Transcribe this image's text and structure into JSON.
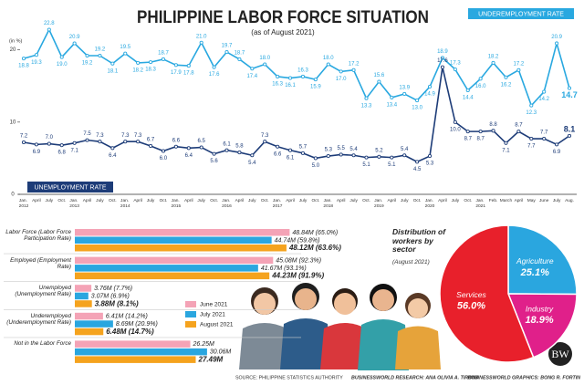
{
  "chart_data": [
    {
      "type": "line",
      "title": "PHILIPPINE LABOR FORCE SITUATION",
      "subtitle": "(as of August 2021)",
      "y_label": "(in %)",
      "categories": [
        "Jan. 2012",
        "April",
        "July",
        "Oct.",
        "Jan. 2013",
        "April",
        "July",
        "Oct.",
        "Jan. 2014",
        "April",
        "July",
        "Oct.",
        "Jan. 2015",
        "April",
        "July",
        "Oct.",
        "Jan. 2016",
        "April",
        "July",
        "Oct.",
        "Jan. 2017",
        "April",
        "July",
        "Oct.",
        "Jan. 2018",
        "April",
        "July",
        "Oct.",
        "Jan. 2019",
        "April",
        "July",
        "Oct.",
        "Jan. 2020",
        "April",
        "July",
        "Oct.",
        "Jan. 2021",
        "Feb.",
        "March",
        "April",
        "May",
        "June",
        "July",
        "Aug."
      ],
      "ylim": [
        0,
        24
      ],
      "yticks": [
        0,
        10,
        20
      ],
      "series": [
        {
          "name": "UNDEREMPLOYMENT RATE",
          "color": "#29a8e0",
          "values": [
            18.8,
            19.3,
            22.8,
            19.0,
            20.9,
            19.2,
            19.2,
            18.1,
            19.5,
            18.2,
            18.3,
            18.7,
            17.9,
            17.8,
            21.0,
            17.6,
            19.7,
            18.7,
            17.4,
            18.0,
            16.3,
            16.1,
            16.3,
            15.9,
            18.0,
            17.0,
            17.2,
            13.3,
            15.6,
            13.4,
            13.9,
            13.0,
            14.9,
            18.9,
            17.3,
            14.4,
            16.0,
            18.2,
            16.2,
            17.2,
            12.3,
            14.2,
            20.9,
            14.7
          ],
          "value_labels": [
            "18.8",
            "19.3",
            "22.8",
            "19.0",
            "20.9",
            "19.2",
            "19.2",
            "18.1",
            "19.5",
            "18.2",
            "18.3",
            "18.7",
            "17.9",
            "17.8",
            "21.0",
            "17.6",
            "19.7",
            "18.7",
            "17.4",
            "18.0",
            "16.3",
            "16.1",
            "16.3",
            "15.9",
            "18.0",
            "17.0",
            "17.2",
            "13.3",
            "15.6",
            "13.4",
            "13.9",
            "13.0",
            "14.9",
            "18.9",
            "17.3",
            "14.4",
            "16.0",
            "18.2",
            "16.2",
            "17.2",
            "12.3",
            "14.2",
            "20.9",
            "14.7"
          ]
        },
        {
          "name": "UNEMPLOYMENT RATE",
          "color": "#1d3c78",
          "values": [
            7.2,
            6.9,
            7.0,
            6.8,
            7.1,
            7.5,
            7.3,
            6.4,
            7.3,
            7.3,
            6.7,
            6.0,
            6.6,
            6.4,
            6.5,
            5.6,
            6.1,
            5.8,
            5.4,
            7.3,
            6.6,
            6.1,
            5.7,
            5.0,
            5.3,
            5.5,
            5.4,
            5.1,
            5.2,
            5.1,
            5.4,
            4.5,
            5.3,
            17.6,
            10.0,
            8.7,
            8.7,
            8.8,
            7.1,
            8.7,
            7.7,
            7.7,
            6.9,
            8.1
          ],
          "value_labels": [
            "7.2",
            "6.9",
            "7.0",
            "6.8",
            "7.1",
            "7.5",
            "7.3",
            "6.4",
            "7.3",
            "7.3",
            "6.7",
            "6.0",
            "6.6",
            "6.4",
            "6.5",
            "5.6",
            "6.1",
            "5.8",
            "5.4",
            "7.3",
            "6.6",
            "6.1",
            "5.7",
            "5.0",
            "5.3",
            "5.5",
            "5.4",
            "5.1",
            "5.2",
            "5.1",
            "5.4",
            "4.5",
            "5.3",
            "17.6",
            "10.0",
            "8.7",
            "8.7",
            "8.8",
            "7.1",
            "8.7",
            "7.7",
            "7.7",
            "6.9",
            "8.1"
          ]
        }
      ]
    },
    {
      "type": "hbar",
      "categories": [
        "Labor Force (Labor Force Participation Rate)",
        "Employed (Employment Rate)",
        "Unemployed (Unemployment Rate)",
        "Underemployed (Underemployment Rate)",
        "Not in the Labor Force"
      ],
      "xlim": [
        0,
        50
      ],
      "series": [
        {
          "name": "June 2021",
          "color": "#f4a3b6",
          "values": [
            48.84,
            45.08,
            3.76,
            6.41,
            26.25
          ],
          "value_labels": [
            "48.84M (65.0%)",
            "45.08M (92.3%)",
            "3.76M (7.7%)",
            "6.41M (14.2%)",
            "26.25M"
          ]
        },
        {
          "name": "July 2021",
          "color": "#2aa6df",
          "values": [
            44.74,
            41.67,
            3.07,
            8.69,
            30.06
          ],
          "value_labels": [
            "44.74M (59.8%)",
            "41.67M (93.1%)",
            "3.07M (6.9%)",
            "8.69M (20.9%)",
            "30.06M"
          ]
        },
        {
          "name": "August 2021",
          "color": "#f5a31e",
          "values": [
            48.12,
            44.23,
            3.88,
            6.48,
            27.49
          ],
          "value_labels": [
            "48.12M (63.6%)",
            "44.23M (91.9%)",
            "3.88M (8.1%)",
            "6.48M (14.7%)",
            "27.49M"
          ]
        }
      ]
    },
    {
      "type": "pie",
      "title": "Distribution of workers by sector",
      "subtitle": "(August 2021)",
      "categories": [
        "Agriculture",
        "Industry",
        "Services"
      ],
      "values": [
        25.1,
        18.9,
        56.0
      ],
      "value_labels": [
        "25.1%",
        "18.9%",
        "56.0%"
      ],
      "colors": [
        "#2aa6df",
        "#e0208a",
        "#e8202b"
      ]
    }
  ],
  "credits": {
    "source": "SOURCE: PHILIPPINE STATISTICS AUTHORITY",
    "research": "BUSINESSWORLD RESEARCH: ANA OLIVIA A. TIRONA",
    "graphics": "BUSINESSWORLD GRAPHICS: BONG R. FORTIN"
  },
  "logo": "BW"
}
